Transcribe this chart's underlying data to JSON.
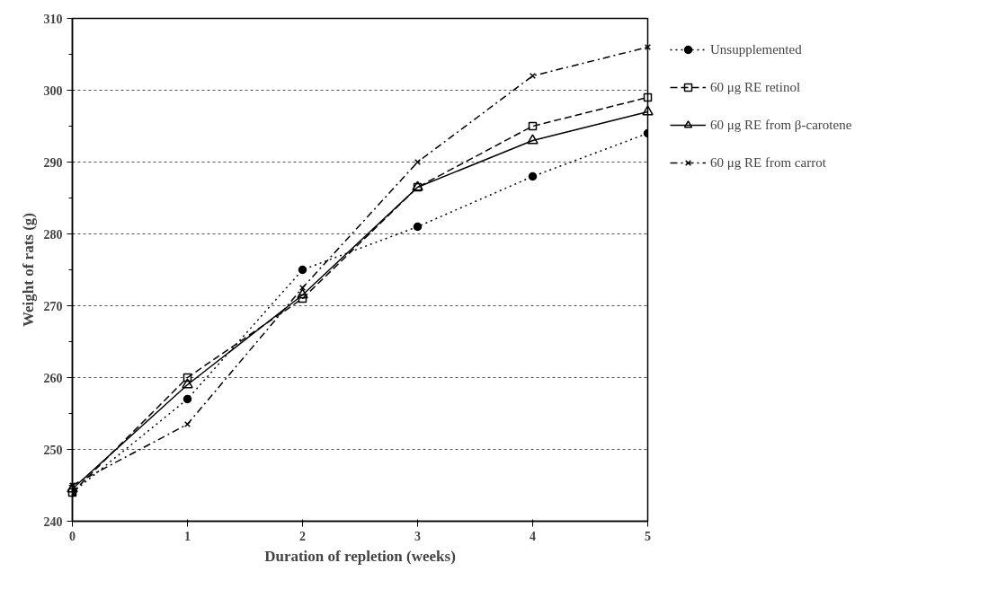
{
  "chart_data": {
    "type": "line",
    "xlabel": "Duration of repletion (weeks)",
    "ylabel": "Weight of rats (g)",
    "x": [
      0,
      1,
      2,
      3,
      4,
      5
    ],
    "series": [
      {
        "name": "Unsupplemented",
        "color": "#000000",
        "marker": "circle",
        "line_style": "dotted",
        "values": [
          244,
          257,
          275,
          281,
          288,
          294
        ]
      },
      {
        "name": "60 μg RE retinol",
        "color": "#000000",
        "marker": "square",
        "line_style": "dashed",
        "values": [
          244,
          260,
          271,
          286.5,
          295,
          299
        ]
      },
      {
        "name": "60 μg RE from β-carotene",
        "color": "#000000",
        "marker": "triangle",
        "line_style": "solid",
        "values": [
          244.5,
          259,
          271.5,
          286.5,
          293,
          297
        ]
      },
      {
        "name": "60 μg RE from carrot",
        "color": "#000000",
        "marker": "x",
        "line_style": "dashdot",
        "values": [
          245,
          253.5,
          272.5,
          290,
          302,
          306
        ]
      }
    ],
    "xlim": [
      0,
      5
    ],
    "ylim": [
      240,
      310
    ],
    "xticks": [
      0,
      1,
      2,
      3,
      4,
      5
    ],
    "yticks": [
      240,
      250,
      260,
      270,
      280,
      290,
      300,
      310
    ],
    "grid": "y",
    "legend": "right"
  }
}
